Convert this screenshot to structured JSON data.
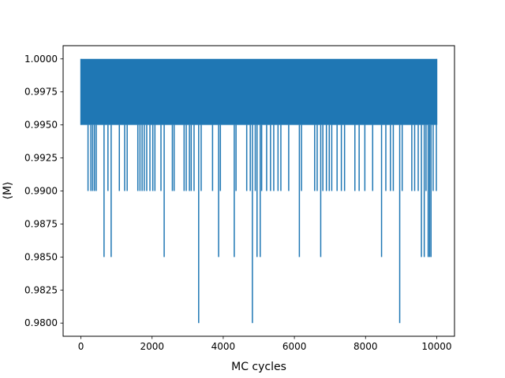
{
  "chart_data": {
    "type": "line",
    "title": "",
    "xlabel": "MC cycles",
    "ylabel": "⟨M⟩",
    "xlim": [
      -500,
      10500
    ],
    "ylim": [
      0.979,
      1.001
    ],
    "xticks": [
      0,
      2000,
      4000,
      6000,
      8000,
      10000
    ],
    "xtick_labels": [
      "0",
      "2000",
      "4000",
      "6000",
      "8000",
      "10000"
    ],
    "yticks": [
      0.98,
      0.9825,
      0.985,
      0.9875,
      0.99,
      0.9925,
      0.995,
      0.9975,
      1.0
    ],
    "ytick_labels": [
      "0.9800",
      "0.9825",
      "0.9850",
      "0.9875",
      "0.9900",
      "0.9925",
      "0.9950",
      "0.9975",
      "1.0000"
    ],
    "grid": false,
    "legend": "none",
    "series": [
      {
        "color": "#1f77b4",
        "baseline_levels": [
          1.0,
          0.995
        ],
        "x_range": [
          0,
          10000
        ],
        "dips": [
          {
            "x": 200,
            "y": 0.99
          },
          {
            "x": 280,
            "y": 0.99
          },
          {
            "x": 330,
            "y": 0.99
          },
          {
            "x": 380,
            "y": 0.99
          },
          {
            "x": 430,
            "y": 0.99
          },
          {
            "x": 650,
            "y": 0.985
          },
          {
            "x": 760,
            "y": 0.99
          },
          {
            "x": 850,
            "y": 0.985
          },
          {
            "x": 1080,
            "y": 0.99
          },
          {
            "x": 1230,
            "y": 0.99
          },
          {
            "x": 1300,
            "y": 0.99
          },
          {
            "x": 1600,
            "y": 0.99
          },
          {
            "x": 1660,
            "y": 0.99
          },
          {
            "x": 1720,
            "y": 0.99
          },
          {
            "x": 1780,
            "y": 0.99
          },
          {
            "x": 1850,
            "y": 0.99
          },
          {
            "x": 1940,
            "y": 0.99
          },
          {
            "x": 2020,
            "y": 0.99
          },
          {
            "x": 2080,
            "y": 0.99
          },
          {
            "x": 2250,
            "y": 0.99
          },
          {
            "x": 2340,
            "y": 0.985
          },
          {
            "x": 2570,
            "y": 0.99
          },
          {
            "x": 2620,
            "y": 0.99
          },
          {
            "x": 2900,
            "y": 0.99
          },
          {
            "x": 2960,
            "y": 0.99
          },
          {
            "x": 3050,
            "y": 0.99
          },
          {
            "x": 3100,
            "y": 0.99
          },
          {
            "x": 3180,
            "y": 0.99
          },
          {
            "x": 3310,
            "y": 0.98
          },
          {
            "x": 3380,
            "y": 0.99
          },
          {
            "x": 3700,
            "y": 0.99
          },
          {
            "x": 3870,
            "y": 0.985
          },
          {
            "x": 3920,
            "y": 0.99
          },
          {
            "x": 4310,
            "y": 0.985
          },
          {
            "x": 4360,
            "y": 0.99
          },
          {
            "x": 4660,
            "y": 0.99
          },
          {
            "x": 4760,
            "y": 0.99
          },
          {
            "x": 4820,
            "y": 0.98
          },
          {
            "x": 4900,
            "y": 0.99
          },
          {
            "x": 4950,
            "y": 0.985
          },
          {
            "x": 5040,
            "y": 0.985
          },
          {
            "x": 5080,
            "y": 0.99
          },
          {
            "x": 5220,
            "y": 0.99
          },
          {
            "x": 5330,
            "y": 0.99
          },
          {
            "x": 5420,
            "y": 0.99
          },
          {
            "x": 5540,
            "y": 0.99
          },
          {
            "x": 5620,
            "y": 0.99
          },
          {
            "x": 5840,
            "y": 0.99
          },
          {
            "x": 6140,
            "y": 0.985
          },
          {
            "x": 6200,
            "y": 0.99
          },
          {
            "x": 6570,
            "y": 0.99
          },
          {
            "x": 6640,
            "y": 0.99
          },
          {
            "x": 6740,
            "y": 0.985
          },
          {
            "x": 6800,
            "y": 0.99
          },
          {
            "x": 6900,
            "y": 0.99
          },
          {
            "x": 6980,
            "y": 0.99
          },
          {
            "x": 7050,
            "y": 0.99
          },
          {
            "x": 7200,
            "y": 0.99
          },
          {
            "x": 7320,
            "y": 0.99
          },
          {
            "x": 7410,
            "y": 0.99
          },
          {
            "x": 7700,
            "y": 0.99
          },
          {
            "x": 7820,
            "y": 0.99
          },
          {
            "x": 7980,
            "y": 0.99
          },
          {
            "x": 8200,
            "y": 0.99
          },
          {
            "x": 8450,
            "y": 0.985
          },
          {
            "x": 8570,
            "y": 0.99
          },
          {
            "x": 8700,
            "y": 0.99
          },
          {
            "x": 8780,
            "y": 0.99
          },
          {
            "x": 8960,
            "y": 0.98
          },
          {
            "x": 9030,
            "y": 0.99
          },
          {
            "x": 9300,
            "y": 0.99
          },
          {
            "x": 9380,
            "y": 0.99
          },
          {
            "x": 9480,
            "y": 0.99
          },
          {
            "x": 9570,
            "y": 0.985
          },
          {
            "x": 9650,
            "y": 0.985
          },
          {
            "x": 9700,
            "y": 0.99
          },
          {
            "x": 9760,
            "y": 0.985
          },
          {
            "x": 9800,
            "y": 0.985
          },
          {
            "x": 9840,
            "y": 0.985
          },
          {
            "x": 9900,
            "y": 0.99
          },
          {
            "x": 9990,
            "y": 0.99
          }
        ]
      }
    ]
  }
}
